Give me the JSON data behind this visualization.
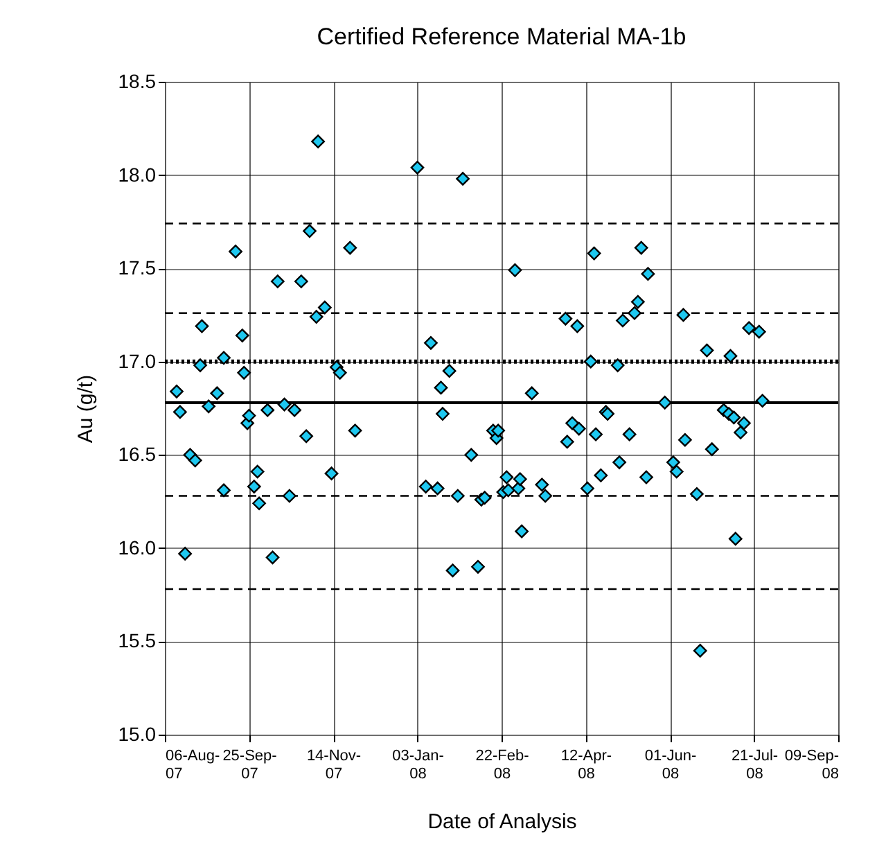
{
  "chart_data": {
    "type": "scatter",
    "title": "Certified Reference Material MA-1b",
    "xlabel": "Date of Analysis",
    "ylabel": "Au (g/t)",
    "x": [
      "2007-08-13",
      "2007-08-15",
      "2007-08-18",
      "2007-08-21",
      "2007-08-24",
      "2007-08-27",
      "2007-08-28",
      "2007-09-01",
      "2007-09-06",
      "2007-09-10",
      "2007-09-10",
      "2007-09-17",
      "2007-09-21",
      "2007-09-22",
      "2007-09-24",
      "2007-09-25",
      "2007-09-28",
      "2007-09-30",
      "2007-10-01",
      "2007-10-06",
      "2007-10-09",
      "2007-10-12",
      "2007-10-16",
      "2007-10-19",
      "2007-10-22",
      "2007-10-26",
      "2007-10-29",
      "2007-10-31",
      "2007-11-04",
      "2007-11-05",
      "2007-11-09",
      "2007-11-13",
      "2007-11-16",
      "2007-11-18",
      "2007-11-24",
      "2007-11-27",
      "2008-01-03",
      "2008-01-08",
      "2008-01-11",
      "2008-01-15",
      "2008-01-17",
      "2008-01-18",
      "2008-01-22",
      "2008-01-24",
      "2008-01-27",
      "2008-01-30",
      "2008-02-04",
      "2008-02-08",
      "2008-02-10",
      "2008-02-12",
      "2008-02-17",
      "2008-02-19",
      "2008-02-20",
      "2008-02-23",
      "2008-02-25",
      "2008-02-26",
      "2008-03-01",
      "2008-03-03",
      "2008-03-04",
      "2008-03-05",
      "2008-03-11",
      "2008-03-17",
      "2008-03-19",
      "2008-03-31",
      "2008-04-01",
      "2008-04-04",
      "2008-04-08",
      "2008-04-07",
      "2008-04-13",
      "2008-04-15",
      "2008-04-18",
      "2008-04-17",
      "2008-04-21",
      "2008-04-24",
      "2008-04-25",
      "2008-05-01",
      "2008-05-02",
      "2008-05-04",
      "2008-05-08",
      "2008-05-11",
      "2008-05-13",
      "2008-05-15",
      "2008-05-18",
      "2008-05-19",
      "2008-05-29",
      "2008-06-03",
      "2008-06-05",
      "2008-06-09",
      "2008-06-10",
      "2008-06-17",
      "2008-06-19",
      "2008-06-23",
      "2008-06-26",
      "2008-07-03",
      "2008-07-06",
      "2008-07-07",
      "2008-07-09",
      "2008-07-10",
      "2008-07-13",
      "2008-07-15",
      "2008-07-18",
      "2008-07-24",
      "2008-07-26"
    ],
    "series": [
      {
        "color": "#1ec8f0",
        "values": [
          16.84,
          16.73,
          15.97,
          16.5,
          16.47,
          16.98,
          17.19,
          16.76,
          16.83,
          17.02,
          16.31,
          17.59,
          17.14,
          16.94,
          16.67,
          16.71,
          16.33,
          16.41,
          16.24,
          16.74,
          15.95,
          17.43,
          16.77,
          16.28,
          16.74,
          17.43,
          16.6,
          17.7,
          17.24,
          18.18,
          17.29,
          16.4,
          16.97,
          16.94,
          17.61,
          16.63,
          18.04,
          16.33,
          17.1,
          16.32,
          16.86,
          16.72,
          16.95,
          15.88,
          16.28,
          17.98,
          16.5,
          15.9,
          16.26,
          16.27,
          16.63,
          16.59,
          16.63,
          16.3,
          16.38,
          16.31,
          17.49,
          16.32,
          16.37,
          16.09,
          16.83,
          16.34,
          16.28,
          17.23,
          16.57,
          16.67,
          16.64,
          17.19,
          16.32,
          17.0,
          16.61,
          17.58,
          16.39,
          16.73,
          16.72,
          16.98,
          16.46,
          17.22,
          16.61,
          17.26,
          17.32,
          17.61,
          16.38,
          17.47,
          16.78,
          16.46,
          16.41,
          17.25,
          16.58,
          16.29,
          15.45,
          17.06,
          16.53,
          16.74,
          16.72,
          17.03,
          16.7,
          16.05,
          16.62,
          16.67,
          17.18,
          17.16,
          16.79
        ]
      }
    ],
    "marker": "diamond",
    "grid": true,
    "legend": false,
    "xlim": [
      "2007-08-06",
      "2008-09-09"
    ],
    "xticks": [
      {
        "value": "2007-08-06",
        "label": "06-Aug-07"
      },
      {
        "value": "2007-09-25",
        "label": "25-Sep-07"
      },
      {
        "value": "2007-11-14",
        "label": "14-Nov-07"
      },
      {
        "value": "2008-01-03",
        "label": "03-Jan-08"
      },
      {
        "value": "2008-02-22",
        "label": "22-Feb-08"
      },
      {
        "value": "2008-04-12",
        "label": "12-Apr-08"
      },
      {
        "value": "2008-06-01",
        "label": "01-Jun-08"
      },
      {
        "value": "2008-07-21",
        "label": "21-Jul-08"
      },
      {
        "value": "2008-09-09",
        "label": "09-Sep-08"
      }
    ],
    "ylim": [
      15.0,
      18.5
    ],
    "yticks": [
      {
        "value": 15.0,
        "label": "15.0"
      },
      {
        "value": 15.5,
        "label": "15.5"
      },
      {
        "value": 16.0,
        "label": "16.0"
      },
      {
        "value": 16.5,
        "label": "16.5"
      },
      {
        "value": 17.0,
        "label": "17.0"
      },
      {
        "value": 17.5,
        "label": "17.5"
      },
      {
        "value": 18.0,
        "label": "18.0"
      },
      {
        "value": 18.5,
        "label": "18.5"
      }
    ],
    "ref_lines": [
      {
        "axis": "y",
        "value": 16.78,
        "color": "#000000",
        "line_style": "solid"
      },
      {
        "axis": "y",
        "value": 17.0,
        "color": "#000000",
        "line_style": "dotted"
      },
      {
        "axis": "y",
        "value": 17.74,
        "color": "#000000",
        "line_style": "dashed"
      },
      {
        "axis": "y",
        "value": 17.26,
        "color": "#000000",
        "line_style": "dashed"
      },
      {
        "axis": "y",
        "value": 16.28,
        "color": "#000000",
        "line_style": "dashed"
      },
      {
        "axis": "y",
        "value": 15.78,
        "color": "#000000",
        "line_style": "dashed"
      }
    ]
  }
}
